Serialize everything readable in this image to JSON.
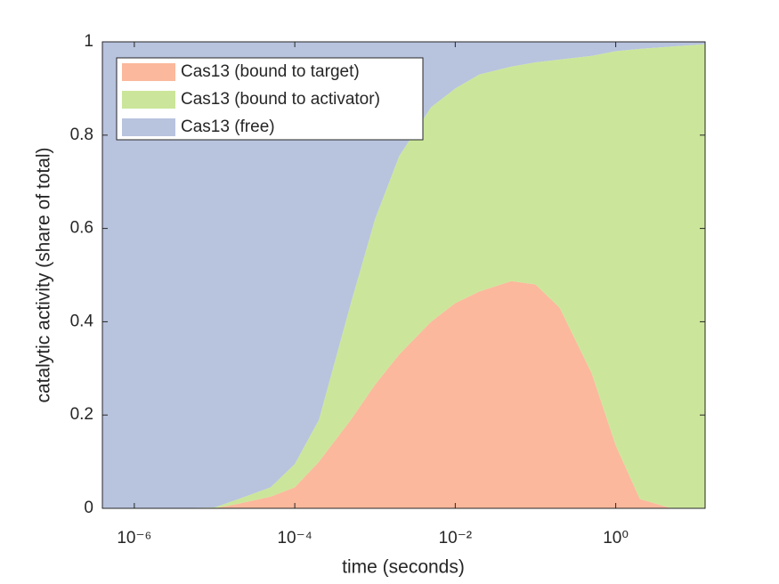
{
  "chart_data": {
    "type": "stacked-area",
    "xlabel": "time (seconds)",
    "ylabel": "catalytic activity (share of total)",
    "x": [
      4e-07,
      1e-06,
      3e-06,
      1e-05,
      2e-05,
      5e-05,
      0.0001,
      0.0002,
      0.0005,
      0.001,
      0.002,
      0.005,
      0.01,
      0.02,
      0.05,
      0.1,
      0.2,
      0.5,
      1,
      2,
      5,
      13
    ],
    "series": [
      {
        "name": "Cas13 (bound to target)",
        "color": "#fbb89c",
        "values": [
          0,
          0,
          0,
          0,
          0.01,
          0.025,
          0.045,
          0.1,
          0.19,
          0.265,
          0.33,
          0.4,
          0.44,
          0.465,
          0.487,
          0.48,
          0.43,
          0.29,
          0.135,
          0.02,
          0,
          0
        ]
      },
      {
        "name": "Cas13 (bound to activator)",
        "color": "#cbe69a",
        "values": [
          0,
          0,
          0,
          0.002,
          0.01,
          0.02,
          0.05,
          0.09,
          0.25,
          0.355,
          0.425,
          0.46,
          0.46,
          0.465,
          0.46,
          0.476,
          0.532,
          0.68,
          0.845,
          0.965,
          0.99,
          0.995
        ]
      },
      {
        "name": "Cas13 (free)",
        "color": "#b8c3de",
        "values": [
          1,
          1,
          1,
          0.998,
          0.98,
          0.955,
          0.905,
          0.81,
          0.56,
          0.38,
          0.245,
          0.14,
          0.1,
          0.07,
          0.053,
          0.044,
          0.038,
          0.03,
          0.02,
          0.015,
          0.01,
          0.005
        ]
      }
    ],
    "xscale": "log",
    "xlim": [
      4e-07,
      13
    ],
    "ylim": [
      0,
      1
    ],
    "xticks": [
      {
        "value": 1e-06,
        "label": "10⁻⁶"
      },
      {
        "value": 0.0001,
        "label": "10⁻⁴"
      },
      {
        "value": 0.01,
        "label": "10⁻²"
      },
      {
        "value": 1,
        "label": "10⁰"
      }
    ],
    "yticks": [
      0,
      0.2,
      0.4,
      0.6,
      0.8,
      1
    ],
    "legend": "upper-left"
  }
}
